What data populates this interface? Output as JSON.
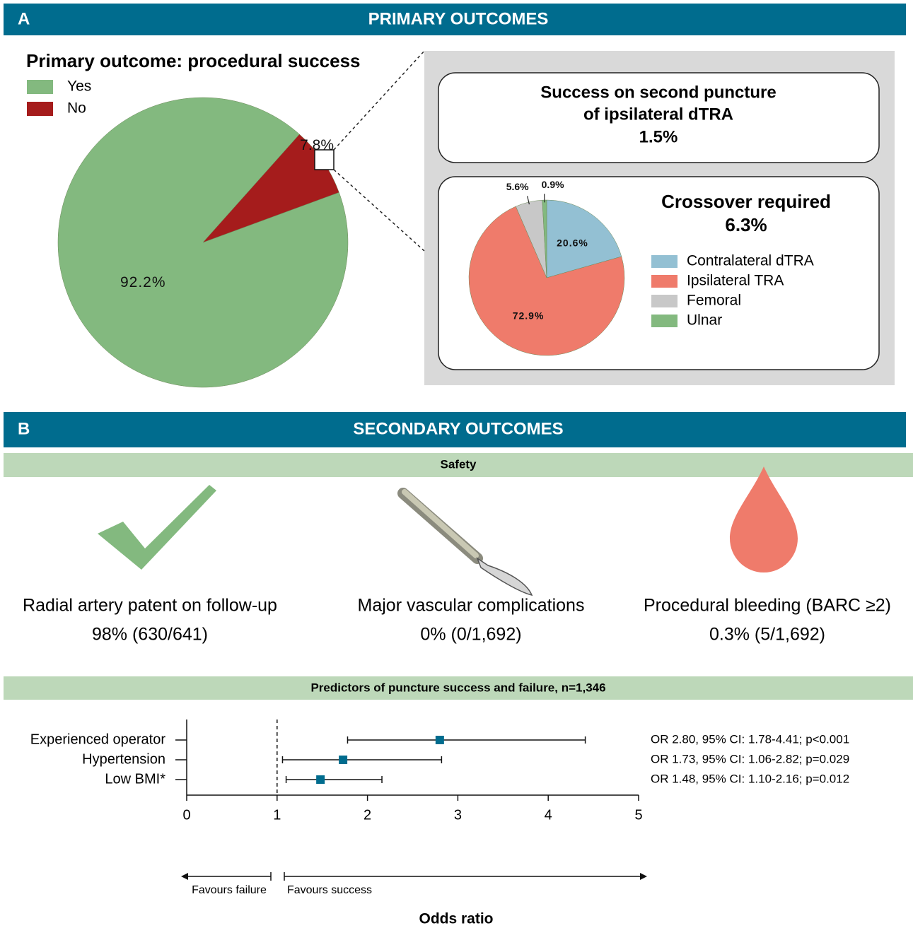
{
  "panels": {
    "a": {
      "letter": "A",
      "title": "PRIMARY OUTCOMES"
    },
    "b": {
      "letter": "B",
      "title": "SECONDARY OUTCOMES"
    }
  },
  "callout": {
    "lines": [
      "Success on second puncture",
      "of ipsilateral dTRA"
    ],
    "value": "1.5%"
  },
  "safety": {
    "title": "Safety",
    "items": [
      {
        "label": "Radial artery patent on follow-up",
        "stat": "98% (630/641)"
      },
      {
        "label": "Major vascular complications",
        "stat": "0% (0/1,692)"
      },
      {
        "label": "Procedural bleeding (BARC ≥2)",
        "stat": "0.3% (5/1,692)"
      }
    ]
  },
  "chart_data": [
    {
      "type": "pie",
      "title": "Primary outcome: procedural success",
      "categories": [
        "Yes",
        "No"
      ],
      "values": [
        92.2,
        7.8
      ],
      "value_labels": [
        "92.2%",
        "7.8%"
      ],
      "colors": [
        "#83b97f",
        "#a51c1c"
      ]
    },
    {
      "type": "pie",
      "title": "Crossover required",
      "subtitle": "6.3%",
      "categories": [
        "Contralateral dTRA",
        "Ipsilateral TRA",
        "Femoral",
        "Ulnar"
      ],
      "values": [
        20.6,
        72.9,
        5.6,
        0.9
      ],
      "value_labels": [
        "20.6%",
        "72.9%",
        "5.6%",
        "0.9%"
      ],
      "colors": [
        "#93c0d3",
        "#ef7b6b",
        "#c8c8c8",
        "#83b97f"
      ]
    },
    {
      "type": "forest",
      "title": "Predictors of puncture success and failure, n=1,346",
      "categories": [
        "Experienced operator",
        "Hypertension",
        "Low BMI*"
      ],
      "values": [
        2.8,
        1.73,
        1.48
      ],
      "ci_low": [
        1.78,
        1.06,
        1.1
      ],
      "ci_high": [
        4.41,
        2.82,
        2.16
      ],
      "value_labels": [
        "OR 2.80, 95% CI: 1.78-4.41; p<0.001",
        "OR 1.73, 95% CI: 1.06-2.82; p=0.029",
        "OR 1.48, 95% CI: 1.10-2.16; p=0.012"
      ],
      "xlim": [
        0,
        5
      ],
      "xticks": [
        0,
        1,
        2,
        3,
        4,
        5
      ],
      "reference_line": 1,
      "xlabel": "Odds ratio",
      "annotations": [
        "Favours failure",
        "Favours success"
      ],
      "color": "#006c8e"
    }
  ]
}
